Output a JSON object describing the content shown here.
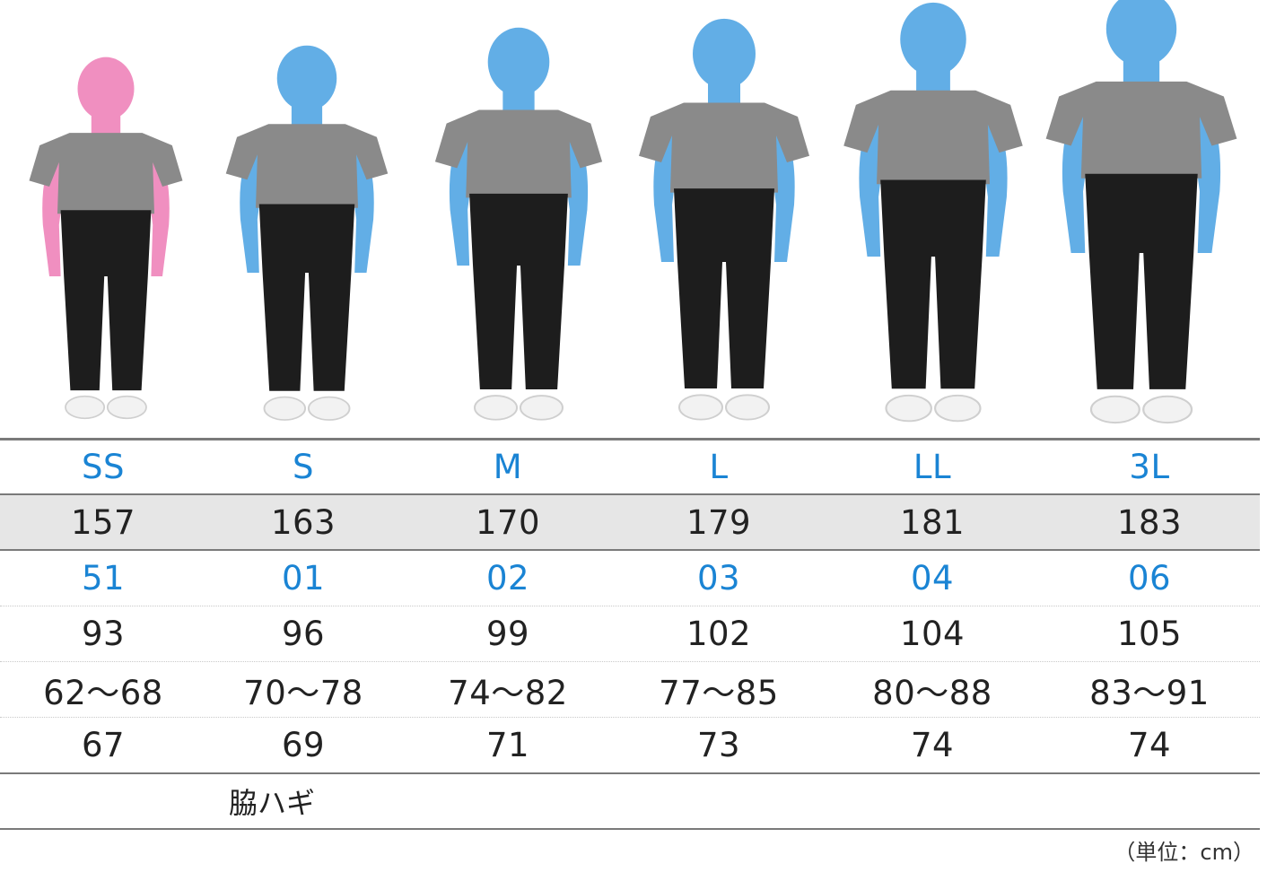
{
  "sizes": [
    "SS",
    "S",
    "M",
    "L",
    "LL",
    "3L"
  ],
  "rows": [
    [
      "157",
      "163",
      "170",
      "179",
      "181",
      "183"
    ],
    [
      "51",
      "01",
      "02",
      "03",
      "04",
      "06"
    ],
    [
      "93",
      "96",
      "99",
      "102",
      "104",
      "105"
    ],
    [
      "62～68",
      "70～78",
      "74～82",
      "77～85",
      "80～88",
      "83～91"
    ],
    [
      "67",
      "69",
      "71",
      "73",
      "74",
      "74"
    ]
  ],
  "note": "脇ハギ",
  "unit": "（単位：cm）",
  "colors": {
    "accent_blue": "#1a84d4",
    "female_figure": "#f08fc0",
    "male_figure": "#62aee6",
    "shirt": "#8a8a8a",
    "pants": "#1d1d1d",
    "highlight_row": "#e6e6e6"
  }
}
